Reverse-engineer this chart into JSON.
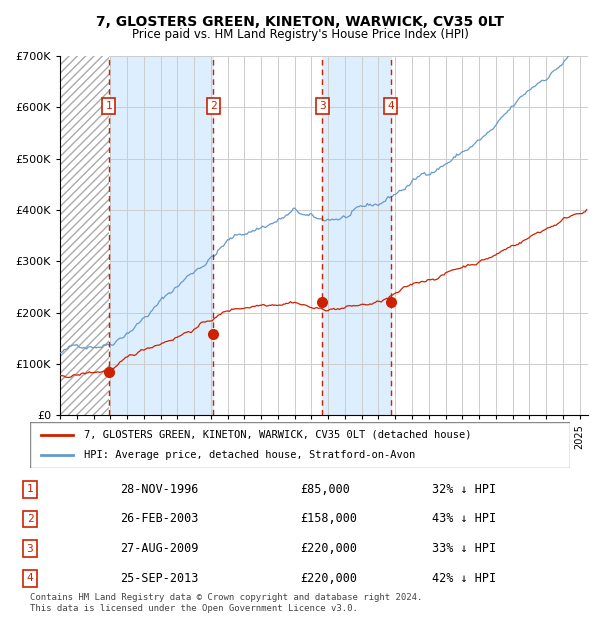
{
  "title": "7, GLOSTERS GREEN, KINETON, WARWICK, CV35 0LT",
  "subtitle": "Price paid vs. HM Land Registry's House Price Index (HPI)",
  "xlabel": "",
  "ylabel": "",
  "ylim": [
    0,
    700000
  ],
  "yticks": [
    0,
    100000,
    200000,
    300000,
    400000,
    500000,
    600000,
    700000
  ],
  "ytick_labels": [
    "£0",
    "£100K",
    "£200K",
    "£300K",
    "£400K",
    "£500K",
    "£600K",
    "£700K"
  ],
  "xlim_start": 1994.0,
  "xlim_end": 2025.5,
  "hpi_color": "#6699cc",
  "price_color": "#cc2200",
  "sale_dot_color": "#cc2200",
  "vline_color": "#cc2200",
  "background_color": "#ffffff",
  "chart_bg_color": "#ffffff",
  "stripe_color": "#ddeeff",
  "hatch_color": "#cccccc",
  "grid_color": "#cccccc",
  "sale_dates_year": [
    1996.91,
    2003.15,
    2009.65,
    2013.73
  ],
  "sale_prices": [
    85000,
    158000,
    220000,
    220000
  ],
  "sale_labels": [
    "1",
    "2",
    "3",
    "4"
  ],
  "sale_date_strings": [
    "28-NOV-1996",
    "26-FEB-2003",
    "27-AUG-2009",
    "25-SEP-2013"
  ],
  "sale_price_strings": [
    "£85,000",
    "£158,000",
    "£220,000",
    "£220,000"
  ],
  "sale_pct_strings": [
    "32% ↓ HPI",
    "43% ↓ HPI",
    "33% ↓ HPI",
    "42% ↓ HPI"
  ],
  "legend_label_red": "7, GLOSTERS GREEN, KINETON, WARWICK, CV35 0LT (detached house)",
  "legend_label_blue": "HPI: Average price, detached house, Stratford-on-Avon",
  "footer1": "Contains HM Land Registry data © Crown copyright and database right 2024.",
  "footer2": "This data is licensed under the Open Government Licence v3.0."
}
